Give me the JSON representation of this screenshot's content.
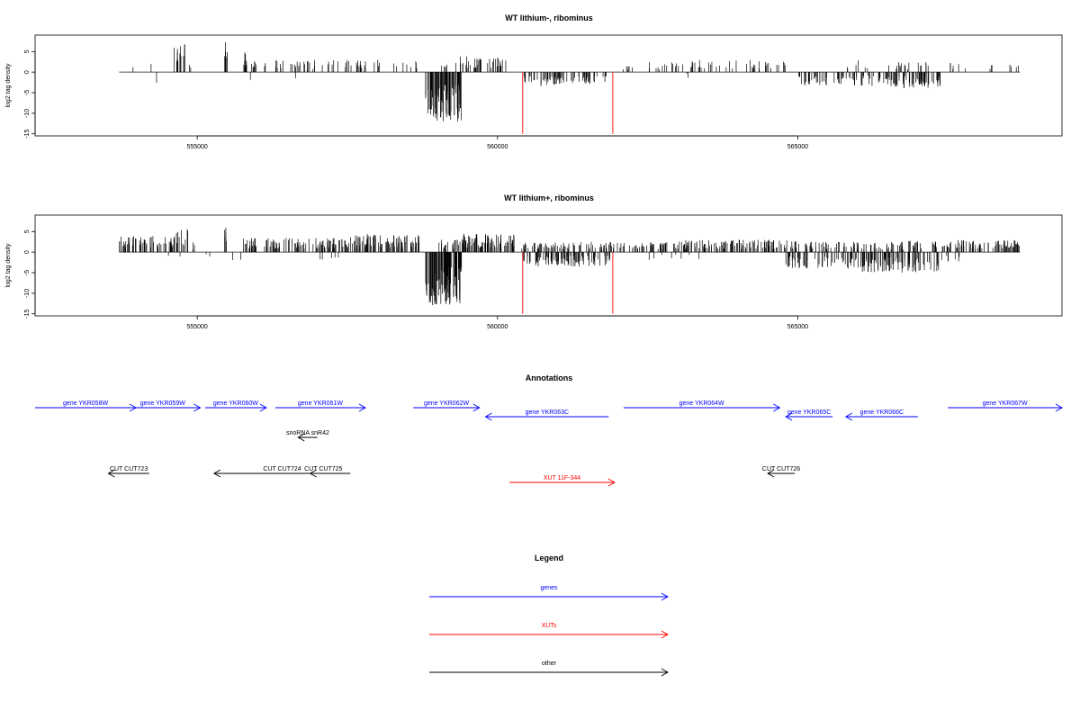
{
  "chart_data": [
    {
      "type": "bar",
      "title": "WT lithium-, ribominus",
      "ylabel": "log2 tag density",
      "xlim": [
        552300,
        569400
      ],
      "ylim": [
        -15.5,
        9
      ],
      "yticks": [
        5,
        0,
        -5,
        -10,
        -15
      ],
      "xticks": [
        555000,
        560000,
        565000
      ],
      "baseline_range": [
        553700,
        568700
      ],
      "series": [
        {
          "color": "#000000",
          "density": "sparse",
          "positive_tracks": [
            [
              553800,
              554000,
              1,
              2.5
            ],
            [
              554200,
              554250,
              1,
              2
            ],
            [
              554600,
              554700,
              6,
              6.5
            ],
            [
              554700,
              554800,
              6,
              7.5
            ],
            [
              554850,
              554900,
              2,
              3
            ],
            [
              555450,
              555500,
              6,
              8
            ],
            [
              555750,
              555850,
              10,
              5
            ],
            [
              555900,
              556000,
              6,
              3
            ],
            [
              556100,
              558500,
              55,
              3
            ],
            [
              558500,
              558700,
              4,
              3.5
            ],
            [
              559050,
              559200,
              5,
              2.5
            ],
            [
              559300,
              559500,
              8,
              4
            ],
            [
              559500,
              560200,
              28,
              3.5
            ],
            [
              562000,
              562300,
              6,
              2
            ],
            [
              562500,
              563100,
              14,
              2.5
            ],
            [
              563200,
              564800,
              38,
              3
            ],
            [
              565800,
              566200,
              6,
              3
            ],
            [
              566400,
              567200,
              18,
              2.5
            ],
            [
              567500,
              567800,
              6,
              2.5
            ],
            [
              568100,
              568700,
              7,
              3
            ]
          ],
          "negative_tracks": [
            [
              554300,
              554330,
              1,
              -3.5
            ],
            [
              555850,
              555900,
              1,
              -2
            ],
            [
              556600,
              556650,
              1,
              -3
            ],
            [
              558800,
              559400,
              80,
              -12
            ],
            [
              560400,
              561000,
              30,
              -3.5
            ],
            [
              561000,
              561900,
              40,
              -3
            ],
            [
              563100,
              563200,
              2,
              -1.5
            ],
            [
              565000,
              566600,
              70,
              -3.5
            ],
            [
              566600,
              567400,
              55,
              -4
            ]
          ]
        },
        {
          "color": "#ff0000",
          "lines": [
            [
              560420,
              -15
            ],
            [
              561920,
              -15
            ]
          ]
        }
      ]
    },
    {
      "type": "bar",
      "title": "WT lithium+, ribominus",
      "ylabel": "log2 tag density",
      "xlim": [
        552300,
        569400
      ],
      "ylim": [
        -15.5,
        9
      ],
      "yticks": [
        5,
        0,
        -5,
        -10,
        -15
      ],
      "xticks": [
        555000,
        560000,
        565000
      ],
      "baseline_range": [
        553700,
        568700
      ],
      "series": [
        {
          "color": "#000000",
          "density": "dense",
          "positive_tracks": [
            [
              553700,
              554650,
              60,
              4
            ],
            [
              554650,
              554850,
              12,
              6.5
            ],
            [
              554900,
              555000,
              3,
              2.5
            ],
            [
              555450,
              555500,
              5,
              8
            ],
            [
              555750,
              556000,
              20,
              3.5
            ],
            [
              556100,
              557500,
              90,
              3.5
            ],
            [
              557500,
              558700,
              90,
              4.5
            ],
            [
              559000,
              559400,
              20,
              3
            ],
            [
              559400,
              560300,
              80,
              4.5
            ],
            [
              560400,
              563000,
              120,
              2.5
            ],
            [
              563000,
              565000,
              120,
              3
            ],
            [
              565000,
              566800,
              70,
              2.5
            ],
            [
              566800,
              568700,
              100,
              3
            ]
          ],
          "negative_tracks": [
            [
              554000,
              555800,
              6,
              -2
            ],
            [
              556800,
              558000,
              5,
              -2
            ],
            [
              558800,
              559400,
              90,
              -13
            ],
            [
              560400,
              561900,
              100,
              -3.5
            ],
            [
              562500,
              563500,
              8,
              -2
            ],
            [
              564800,
              566000,
              60,
              -4
            ],
            [
              566000,
              567400,
              90,
              -5
            ],
            [
              567400,
              567700,
              6,
              -2.5
            ]
          ]
        },
        {
          "color": "#ff0000",
          "lines": [
            [
              560420,
              -15
            ],
            [
              561920,
              -15
            ]
          ]
        }
      ]
    },
    {
      "type": "annotation",
      "title": "Annotations",
      "xlim": [
        552300,
        569400
      ],
      "features": [
        {
          "label": "gene YKR058W",
          "color": "#0000ff",
          "strand": "+",
          "start": 552300,
          "end": 553980,
          "row": 0
        },
        {
          "label": "gene YKR059W",
          "color": "#0000ff",
          "strand": "+",
          "start": 553800,
          "end": 555050,
          "row": 0
        },
        {
          "label": "gene YKR060W",
          "color": "#0000ff",
          "strand": "+",
          "start": 555130,
          "end": 556150,
          "row": 0
        },
        {
          "label": "gene YKR061W",
          "color": "#0000ff",
          "strand": "+",
          "start": 556300,
          "end": 557800,
          "row": 0
        },
        {
          "label": "gene YKR062W",
          "color": "#0000ff",
          "strand": "+",
          "start": 558600,
          "end": 559700,
          "row": 0
        },
        {
          "label": "gene YKR063C",
          "color": "#0000ff",
          "strand": "-",
          "start": 559800,
          "end": 561850,
          "row": 1
        },
        {
          "label": "gene YKR064W",
          "color": "#0000ff",
          "strand": "+",
          "start": 562100,
          "end": 564700,
          "row": 0
        },
        {
          "label": "gene YKR065C",
          "color": "#0000ff",
          "strand": "-",
          "start": 564800,
          "end": 565580,
          "row": 1
        },
        {
          "label": "gene YKR066C",
          "color": "#0000ff",
          "strand": "-",
          "start": 565800,
          "end": 567000,
          "row": 1
        },
        {
          "label": "gene YKR067W",
          "color": "#0000ff",
          "strand": "+",
          "start": 567500,
          "end": 569400,
          "row": 0
        },
        {
          "label": "snoRNA snR42",
          "color": "#000000",
          "strand": "-",
          "start": 556680,
          "end": 557000,
          "row": 2
        },
        {
          "label": "CUT CUT723",
          "color": "#000000",
          "strand": "-",
          "start": 553520,
          "end": 554200,
          "row": 3
        },
        {
          "label": "CUT CUT724",
          "color": "#000000",
          "strand": "-",
          "start": 555280,
          "end": 557550,
          "row": 3
        },
        {
          "label": "CUT CUT725",
          "color": "#000000",
          "strand": "-",
          "start": 556880,
          "end": 557320,
          "row": 3
        },
        {
          "label": "XUT 11F-344",
          "color": "#ff0000",
          "strand": "+",
          "start": 560200,
          "end": 561950,
          "row": 4
        },
        {
          "label": "CUT CUT726",
          "color": "#000000",
          "strand": "-",
          "start": 564500,
          "end": 564950,
          "row": 3
        }
      ]
    },
    {
      "type": "legend",
      "title": "Legend",
      "entries": [
        {
          "label": "genes",
          "color": "#0000ff"
        },
        {
          "label": "XUTs",
          "color": "#ff0000"
        },
        {
          "label": "other",
          "color": "#000000"
        }
      ]
    }
  ]
}
